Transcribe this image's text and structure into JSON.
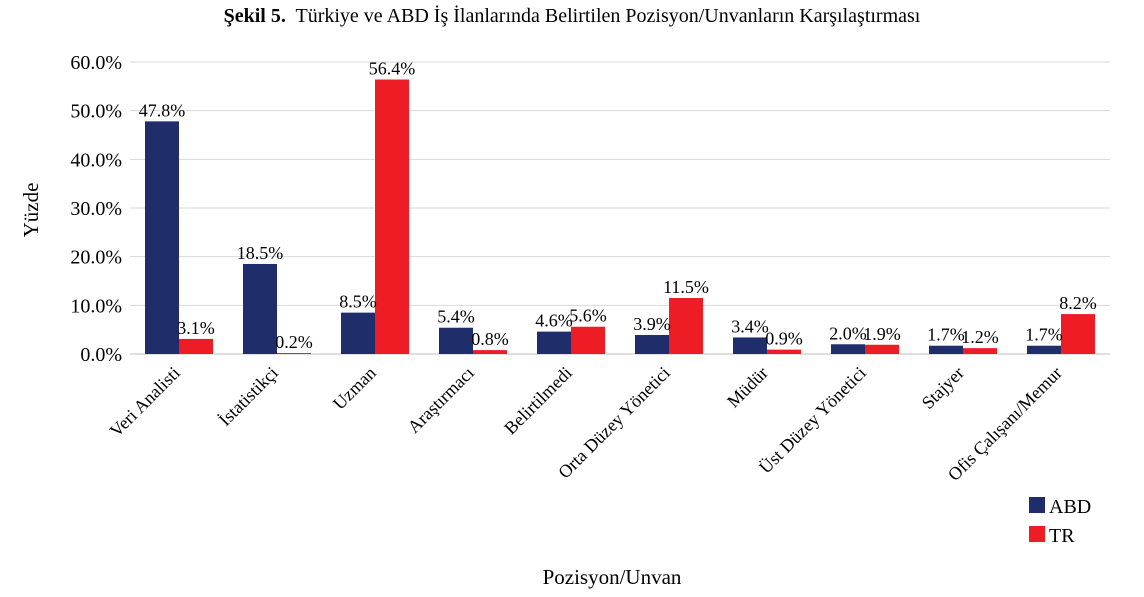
{
  "figure": {
    "label": "Şekil 5.",
    "caption": "Türkiye ve ABD İş İlanlarında Belirtilen Pozisyon/Unvanların Karşılaştırması"
  },
  "chart_data": {
    "type": "bar",
    "xlabel": "Pozisyon/Unvan",
    "ylabel": "Yüzde",
    "ylim": [
      0,
      60
    ],
    "y_ticks": [
      "0.0%",
      "10.0%",
      "20.0%",
      "30.0%",
      "40.0%",
      "50.0%",
      "60.0%"
    ],
    "categories": [
      "Veri Analisti",
      "İstatistikçi",
      "Uzman",
      "Araştırmacı",
      "Belirtilmedi",
      "Orta Düzey Yönetici",
      "Müdür",
      "Üst Düzey Yönetici",
      "Stajyer",
      "Ofis Çalışanı/Memur"
    ],
    "series": [
      {
        "name": "ABD",
        "color": "#1f2d6b",
        "values": [
          47.8,
          18.5,
          8.5,
          5.4,
          4.6,
          3.9,
          3.4,
          2.0,
          1.7,
          1.7
        ],
        "labels": [
          "47.8%",
          "18.5%",
          "8.5%",
          "5.4%",
          "4.6%",
          "3.9%",
          "3.4%",
          "2.0%",
          "1.7%",
          "1.7%"
        ]
      },
      {
        "name": "TR",
        "color": "#ee1c24",
        "values": [
          3.1,
          0.2,
          56.4,
          0.8,
          5.6,
          11.5,
          0.9,
          1.9,
          1.2,
          8.2
        ],
        "labels": [
          "3.1%",
          "0.2%",
          "56.4%",
          "0.8%",
          "5.6%",
          "11.5%",
          "0.9%",
          "1.9%",
          "1.2%",
          "8.2%"
        ]
      }
    ],
    "grid": true,
    "legend_position": "bottom-right"
  }
}
